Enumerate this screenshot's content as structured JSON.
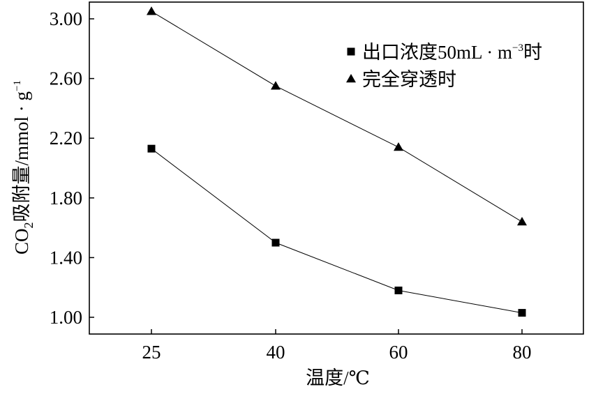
{
  "chart_data": {
    "type": "line",
    "title": "",
    "xlabel": "温度/℃",
    "ylabel": {
      "prefix": "CO",
      "subscript": "2",
      "middle": "吸附量/mmol · g",
      "superscript": "−1"
    },
    "x": [
      25,
      40,
      60,
      80
    ],
    "x_tick_labels": [
      "25",
      "40",
      "60",
      "80"
    ],
    "ylim": [
      0.9,
      3.1
    ],
    "y_ticks": [
      1.0,
      1.4,
      1.8,
      2.2,
      2.6,
      3.0
    ],
    "y_tick_labels": [
      "1.00",
      "1.40",
      "1.80",
      "2.20",
      "2.60",
      "3.00"
    ],
    "grid": false,
    "legend_position": "top-right",
    "series": [
      {
        "name": "出口浓度50mL · m⁻³时",
        "legend": {
          "base": "出口浓度50mL · m",
          "superscript": "−3",
          "suffix": "时"
        },
        "marker": "square",
        "color": "#000000",
        "values": [
          2.13,
          1.5,
          1.18,
          1.03
        ]
      },
      {
        "name": "完全穿透时",
        "legend": {
          "base": "完全穿透时",
          "superscript": "",
          "suffix": ""
        },
        "marker": "triangle",
        "color": "#000000",
        "values": [
          3.05,
          2.55,
          2.14,
          1.64
        ]
      }
    ]
  }
}
